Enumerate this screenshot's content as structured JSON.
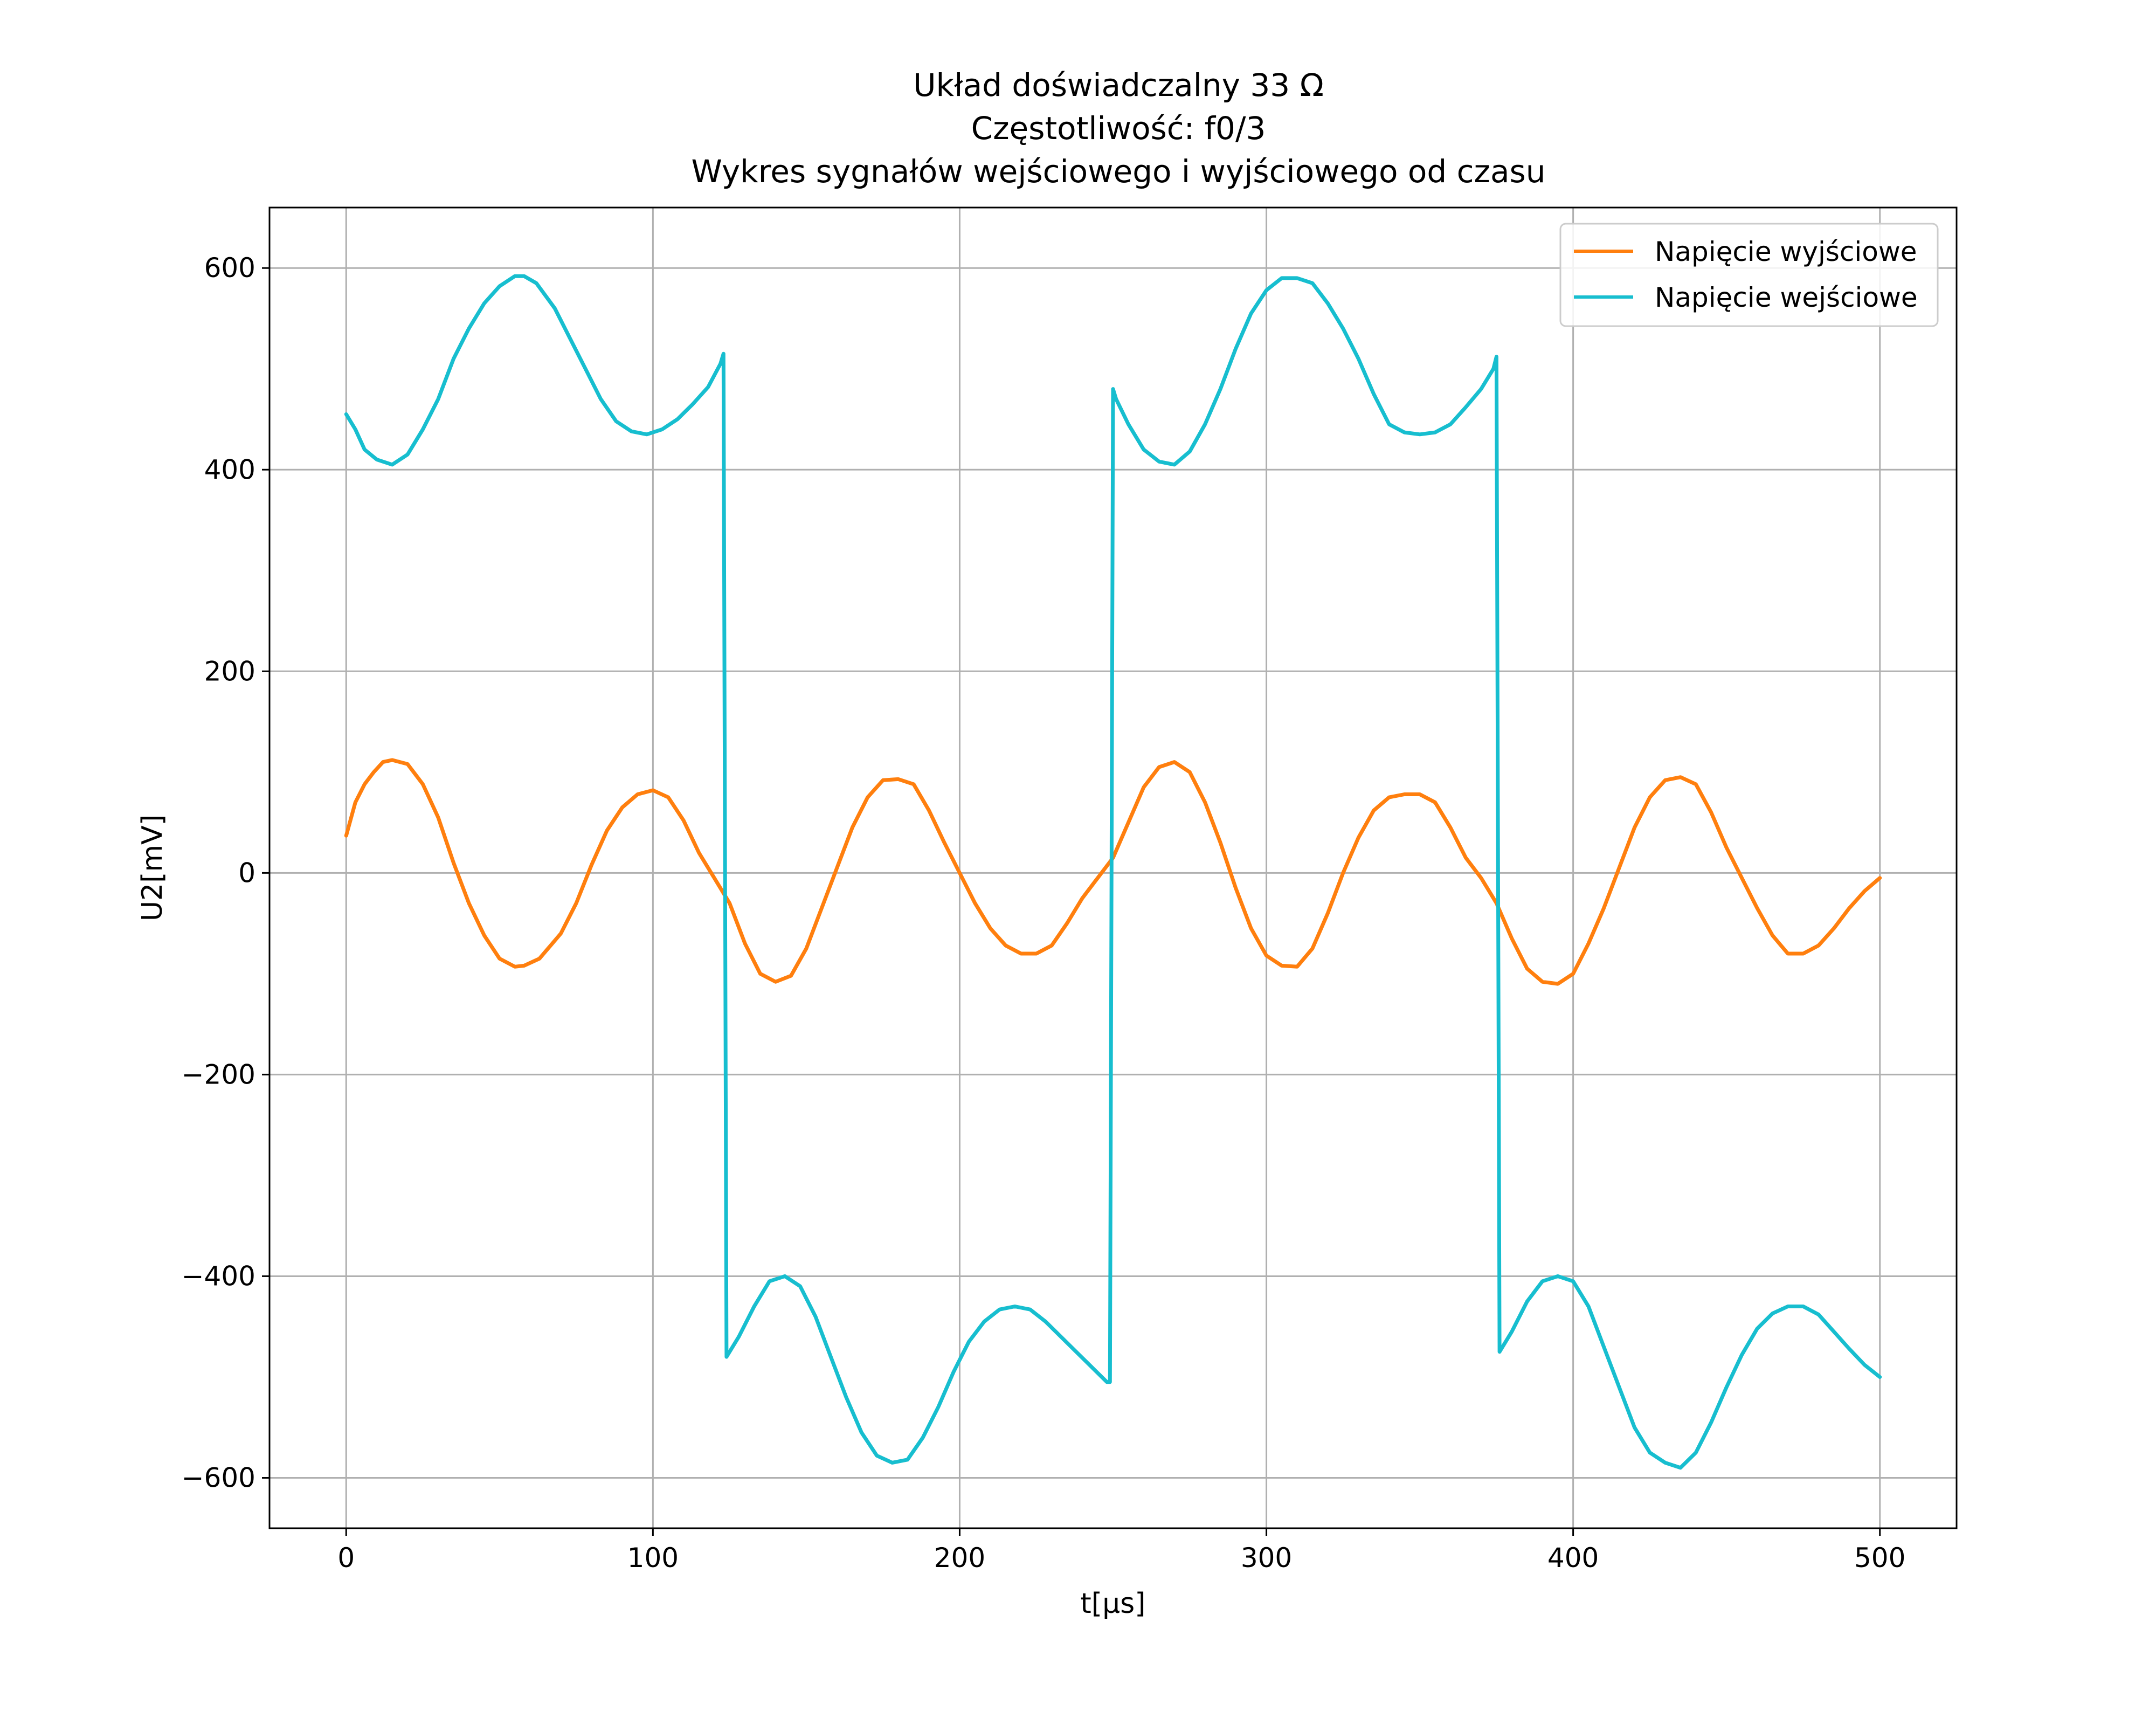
{
  "chart_data": {
    "type": "line",
    "title_lines": [
      "Układ doświadczalny 33 Ω",
      "Częstotliwość: f0/3",
      "Wykres sygnałów wejściowego i wyjściowego od czasu"
    ],
    "xlabel": "t[μs]",
    "ylabel": "U2[mV]",
    "xlim": [
      -25,
      525
    ],
    "ylim": [
      -650,
      660
    ],
    "xticks": [
      0,
      100,
      200,
      300,
      400,
      500
    ],
    "xtick_labels": [
      "0",
      "100",
      "200",
      "300",
      "400",
      "500"
    ],
    "yticks": [
      -600,
      -400,
      -200,
      0,
      200,
      400,
      600
    ],
    "ytick_labels": [
      "−600",
      "−400",
      "−200",
      "0",
      "200",
      "400",
      "600"
    ],
    "grid": true,
    "legend_position": "top-right",
    "series": [
      {
        "name": "Napięcie wyjściowe",
        "color": "#ff7f0e",
        "x": [
          0,
          3,
          6,
          9,
          12,
          15,
          20,
          25,
          30,
          35,
          40,
          45,
          50,
          55,
          58,
          63,
          70,
          75,
          80,
          85,
          90,
          95,
          100,
          105,
          110,
          115,
          120,
          125,
          130,
          135,
          140,
          145,
          150,
          155,
          160,
          165,
          170,
          175,
          180,
          185,
          190,
          195,
          200,
          205,
          210,
          215,
          220,
          225,
          230,
          235,
          240,
          245,
          250,
          255,
          260,
          265,
          270,
          275,
          280,
          285,
          290,
          295,
          300,
          305,
          310,
          315,
          320,
          325,
          330,
          335,
          340,
          345,
          350,
          355,
          360,
          365,
          370,
          375,
          380,
          385,
          390,
          395,
          400,
          405,
          410,
          415,
          420,
          425,
          430,
          435,
          440,
          445,
          450,
          455,
          460,
          465,
          470,
          475,
          480,
          485,
          490,
          495,
          500
        ],
        "y": [
          37,
          70,
          88,
          100,
          110,
          112,
          108,
          88,
          55,
          10,
          -30,
          -62,
          -85,
          -93,
          -92,
          -85,
          -60,
          -30,
          8,
          42,
          65,
          78,
          82,
          75,
          52,
          20,
          -5,
          -30,
          -70,
          -100,
          -108,
          -102,
          -75,
          -35,
          5,
          45,
          75,
          92,
          93,
          88,
          62,
          30,
          0,
          -30,
          -55,
          -72,
          -80,
          -80,
          -72,
          -50,
          -25,
          -5,
          15,
          50,
          85,
          105,
          110,
          100,
          70,
          30,
          -15,
          -55,
          -82,
          -92,
          -93,
          -75,
          -40,
          0,
          35,
          62,
          75,
          78,
          78,
          70,
          45,
          15,
          -5,
          -30,
          -65,
          -95,
          -108,
          -110,
          -100,
          -70,
          -35,
          5,
          45,
          75,
          92,
          95,
          88,
          60,
          25,
          -5,
          -35,
          -62,
          -80,
          -80,
          -72,
          -55,
          -35,
          -18,
          -5
        ]
      },
      {
        "name": "Napięcie wejściowe",
        "color": "#17becf",
        "x": [
          0,
          3,
          6,
          10,
          15,
          20,
          25,
          30,
          35,
          40,
          45,
          50,
          55,
          58,
          62,
          68,
          73,
          78,
          83,
          88,
          93,
          98,
          103,
          108,
          113,
          118,
          122,
          123,
          124,
          128,
          133,
          138,
          143,
          148,
          153,
          158,
          163,
          168,
          173,
          178,
          183,
          188,
          193,
          198,
          203,
          208,
          213,
          218,
          223,
          228,
          233,
          238,
          243,
          248,
          249,
          250,
          251,
          255,
          260,
          265,
          270,
          275,
          280,
          285,
          290,
          295,
          300,
          305,
          310,
          315,
          320,
          325,
          330,
          335,
          340,
          345,
          350,
          355,
          360,
          365,
          370,
          374,
          375,
          376,
          380,
          385,
          390,
          395,
          400,
          405,
          410,
          415,
          420,
          425,
          430,
          435,
          440,
          445,
          450,
          455,
          460,
          465,
          470,
          475,
          480,
          485,
          490,
          495,
          500
        ],
        "y": [
          455,
          440,
          420,
          410,
          405,
          415,
          440,
          470,
          510,
          540,
          565,
          582,
          592,
          592,
          585,
          560,
          530,
          500,
          470,
          448,
          438,
          435,
          440,
          450,
          465,
          482,
          505,
          515,
          -480,
          -460,
          -430,
          -405,
          -400,
          -410,
          -440,
          -480,
          -520,
          -555,
          -578,
          -585,
          -582,
          -560,
          -530,
          -495,
          -465,
          -445,
          -433,
          -430,
          -433,
          -445,
          -460,
          -475,
          -490,
          -505,
          -505,
          480,
          470,
          445,
          420,
          408,
          405,
          418,
          445,
          480,
          520,
          555,
          578,
          590,
          590,
          585,
          565,
          540,
          510,
          475,
          445,
          437,
          435,
          437,
          445,
          462,
          480,
          500,
          512,
          -475,
          -455,
          -425,
          -405,
          -400,
          -405,
          -430,
          -470,
          -510,
          -550,
          -575,
          -585,
          -590,
          -575,
          -545,
          -510,
          -478,
          -452,
          -437,
          -430,
          -430,
          -438,
          -455,
          -472,
          -488,
          -500
        ]
      }
    ]
  }
}
